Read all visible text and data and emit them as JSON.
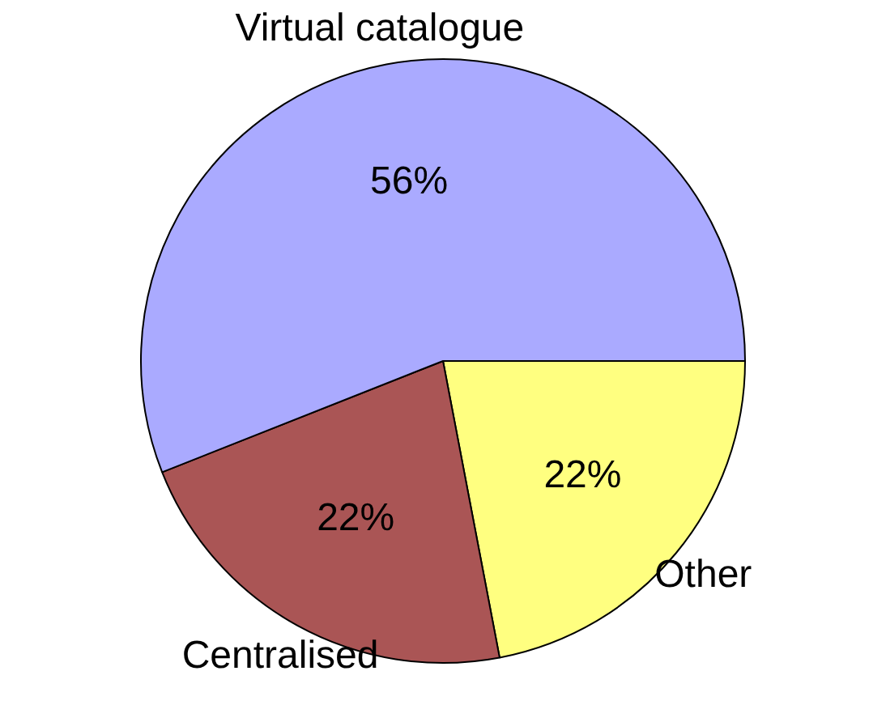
{
  "chart_data": {
    "type": "pie",
    "categories": [
      "Other",
      "Centralised",
      "Virtual catalogue"
    ],
    "values": [
      22,
      22,
      56
    ],
    "colors": [
      "#ffff80",
      "#aa5555",
      "#aaaaff"
    ],
    "value_labels": [
      "22%",
      "22%",
      "56%"
    ],
    "legend": false
  }
}
